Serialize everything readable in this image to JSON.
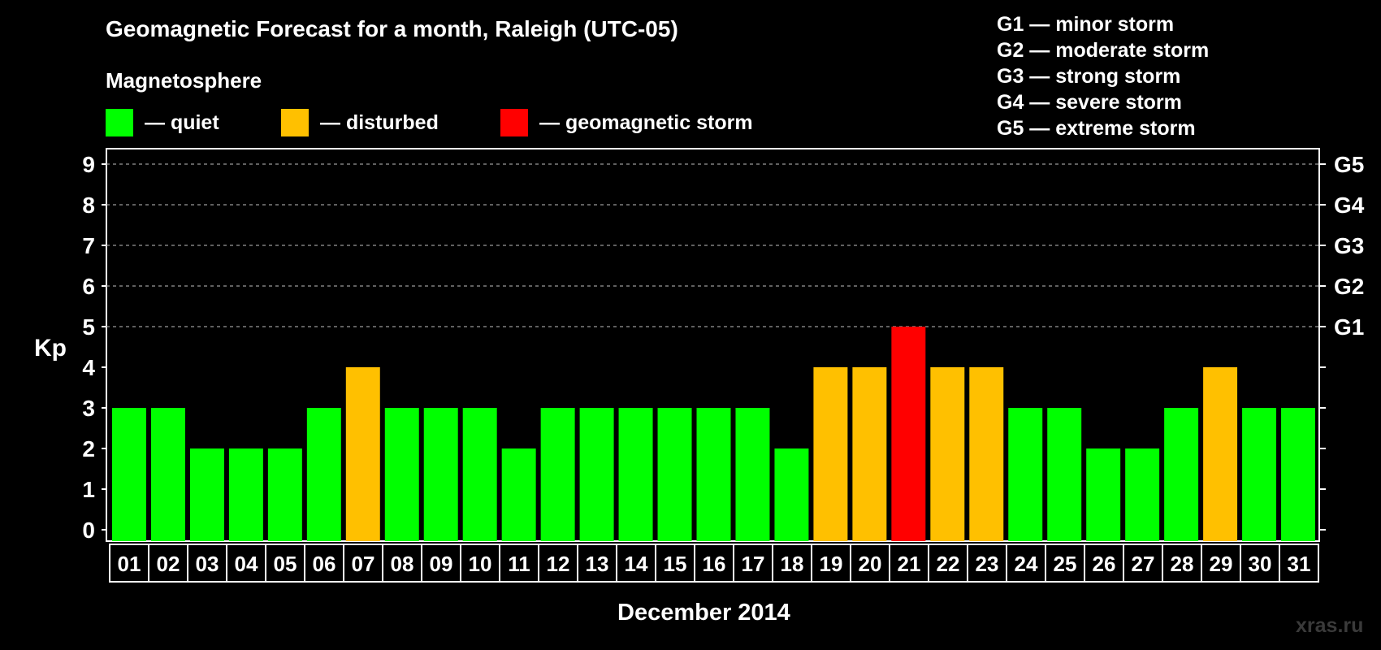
{
  "chart_data": {
    "type": "bar",
    "title": "Geomagnetic Forecast for a month, Raleigh (UTC-05)",
    "xlabel": "December 2014",
    "ylabel": "Kp",
    "ylim": [
      0,
      9
    ],
    "yticks": [
      0,
      1,
      2,
      3,
      4,
      5,
      6,
      7,
      8,
      9
    ],
    "right_axis": [
      {
        "kp": 5,
        "label": "G1"
      },
      {
        "kp": 6,
        "label": "G2"
      },
      {
        "kp": 7,
        "label": "G3"
      },
      {
        "kp": 8,
        "label": "G4"
      },
      {
        "kp": 9,
        "label": "G5"
      }
    ],
    "categories": [
      "01",
      "02",
      "03",
      "04",
      "05",
      "06",
      "07",
      "08",
      "09",
      "10",
      "11",
      "12",
      "13",
      "14",
      "15",
      "16",
      "17",
      "18",
      "19",
      "20",
      "21",
      "22",
      "23",
      "24",
      "25",
      "26",
      "27",
      "28",
      "29",
      "30",
      "31"
    ],
    "values": [
      3,
      3,
      2,
      2,
      2,
      3,
      4,
      3,
      3,
      3,
      2,
      3,
      3,
      3,
      3,
      3,
      3,
      2,
      4,
      4,
      5,
      4,
      4,
      3,
      3,
      2,
      2,
      3,
      4,
      3,
      3
    ],
    "status": [
      "quiet",
      "quiet",
      "quiet",
      "quiet",
      "quiet",
      "quiet",
      "disturbed",
      "quiet",
      "quiet",
      "quiet",
      "quiet",
      "quiet",
      "quiet",
      "quiet",
      "quiet",
      "quiet",
      "quiet",
      "quiet",
      "disturbed",
      "disturbed",
      "storm",
      "disturbed",
      "disturbed",
      "quiet",
      "quiet",
      "quiet",
      "quiet",
      "quiet",
      "disturbed",
      "quiet",
      "quiet"
    ],
    "grid": true
  },
  "legend": {
    "heading": "Magnetosphere",
    "items": [
      {
        "key": "quiet",
        "label": "— quiet",
        "color": "#00ff00"
      },
      {
        "key": "disturbed",
        "label": "— disturbed",
        "color": "#ffc000"
      },
      {
        "key": "storm",
        "label": "— geomagnetic storm",
        "color": "#ff0000"
      }
    ]
  },
  "storm_legend": [
    "G1 — minor storm",
    "G2 — moderate storm",
    "G3 — strong storm",
    "G4 — severe storm",
    "G5 — extreme storm"
  ],
  "watermark": "xras.ru"
}
